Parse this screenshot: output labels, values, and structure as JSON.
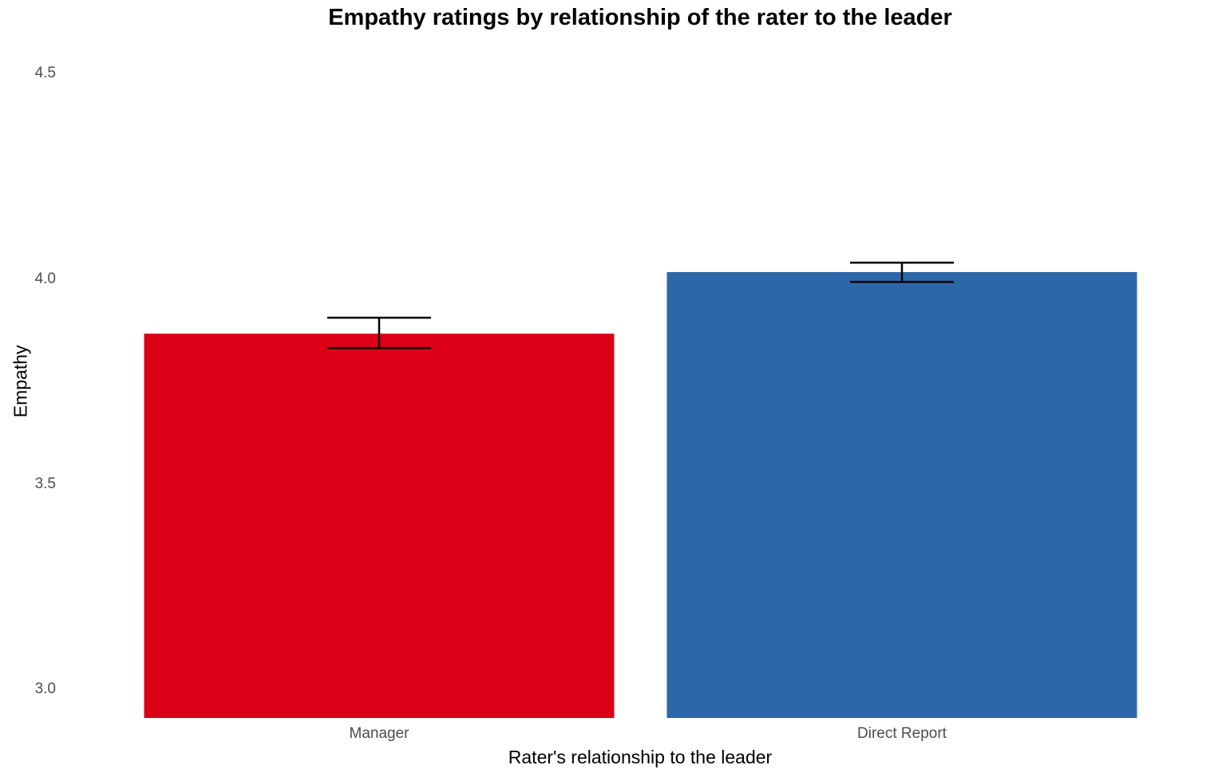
{
  "chart_data": {
    "type": "bar",
    "title": "Empathy ratings by relationship of the rater to the leader",
    "xlabel": "Rater's relationship to the leader",
    "ylabel": "Empathy",
    "categories": [
      "Manager",
      "Direct Report"
    ],
    "values": [
      3.866,
      4.016
    ],
    "error_bars": [
      {
        "lower": 3.831,
        "upper": 3.905
      },
      {
        "lower": 3.992,
        "upper": 4.039
      }
    ],
    "colors": [
      "#dc0016",
      "#2c68a9"
    ],
    "ylim": [
      2.93,
      4.55
    ],
    "yticks": [
      "3.0",
      "3.5",
      "4.0",
      "4.5"
    ],
    "grid": false,
    "legend": "none"
  },
  "title": "Empathy ratings by relationship of the rater to the leader",
  "axes": {
    "xlabel": "Rater's relationship to the leader",
    "ylabel": "Empathy",
    "yticks": [
      {
        "label": "4.5",
        "value": 4.5
      },
      {
        "label": "4.0",
        "value": 4.0
      },
      {
        "label": "3.5",
        "value": 3.5
      },
      {
        "label": "3.0",
        "value": 3.0
      }
    ],
    "xticks": [
      "Manager",
      "Direct Report"
    ]
  }
}
